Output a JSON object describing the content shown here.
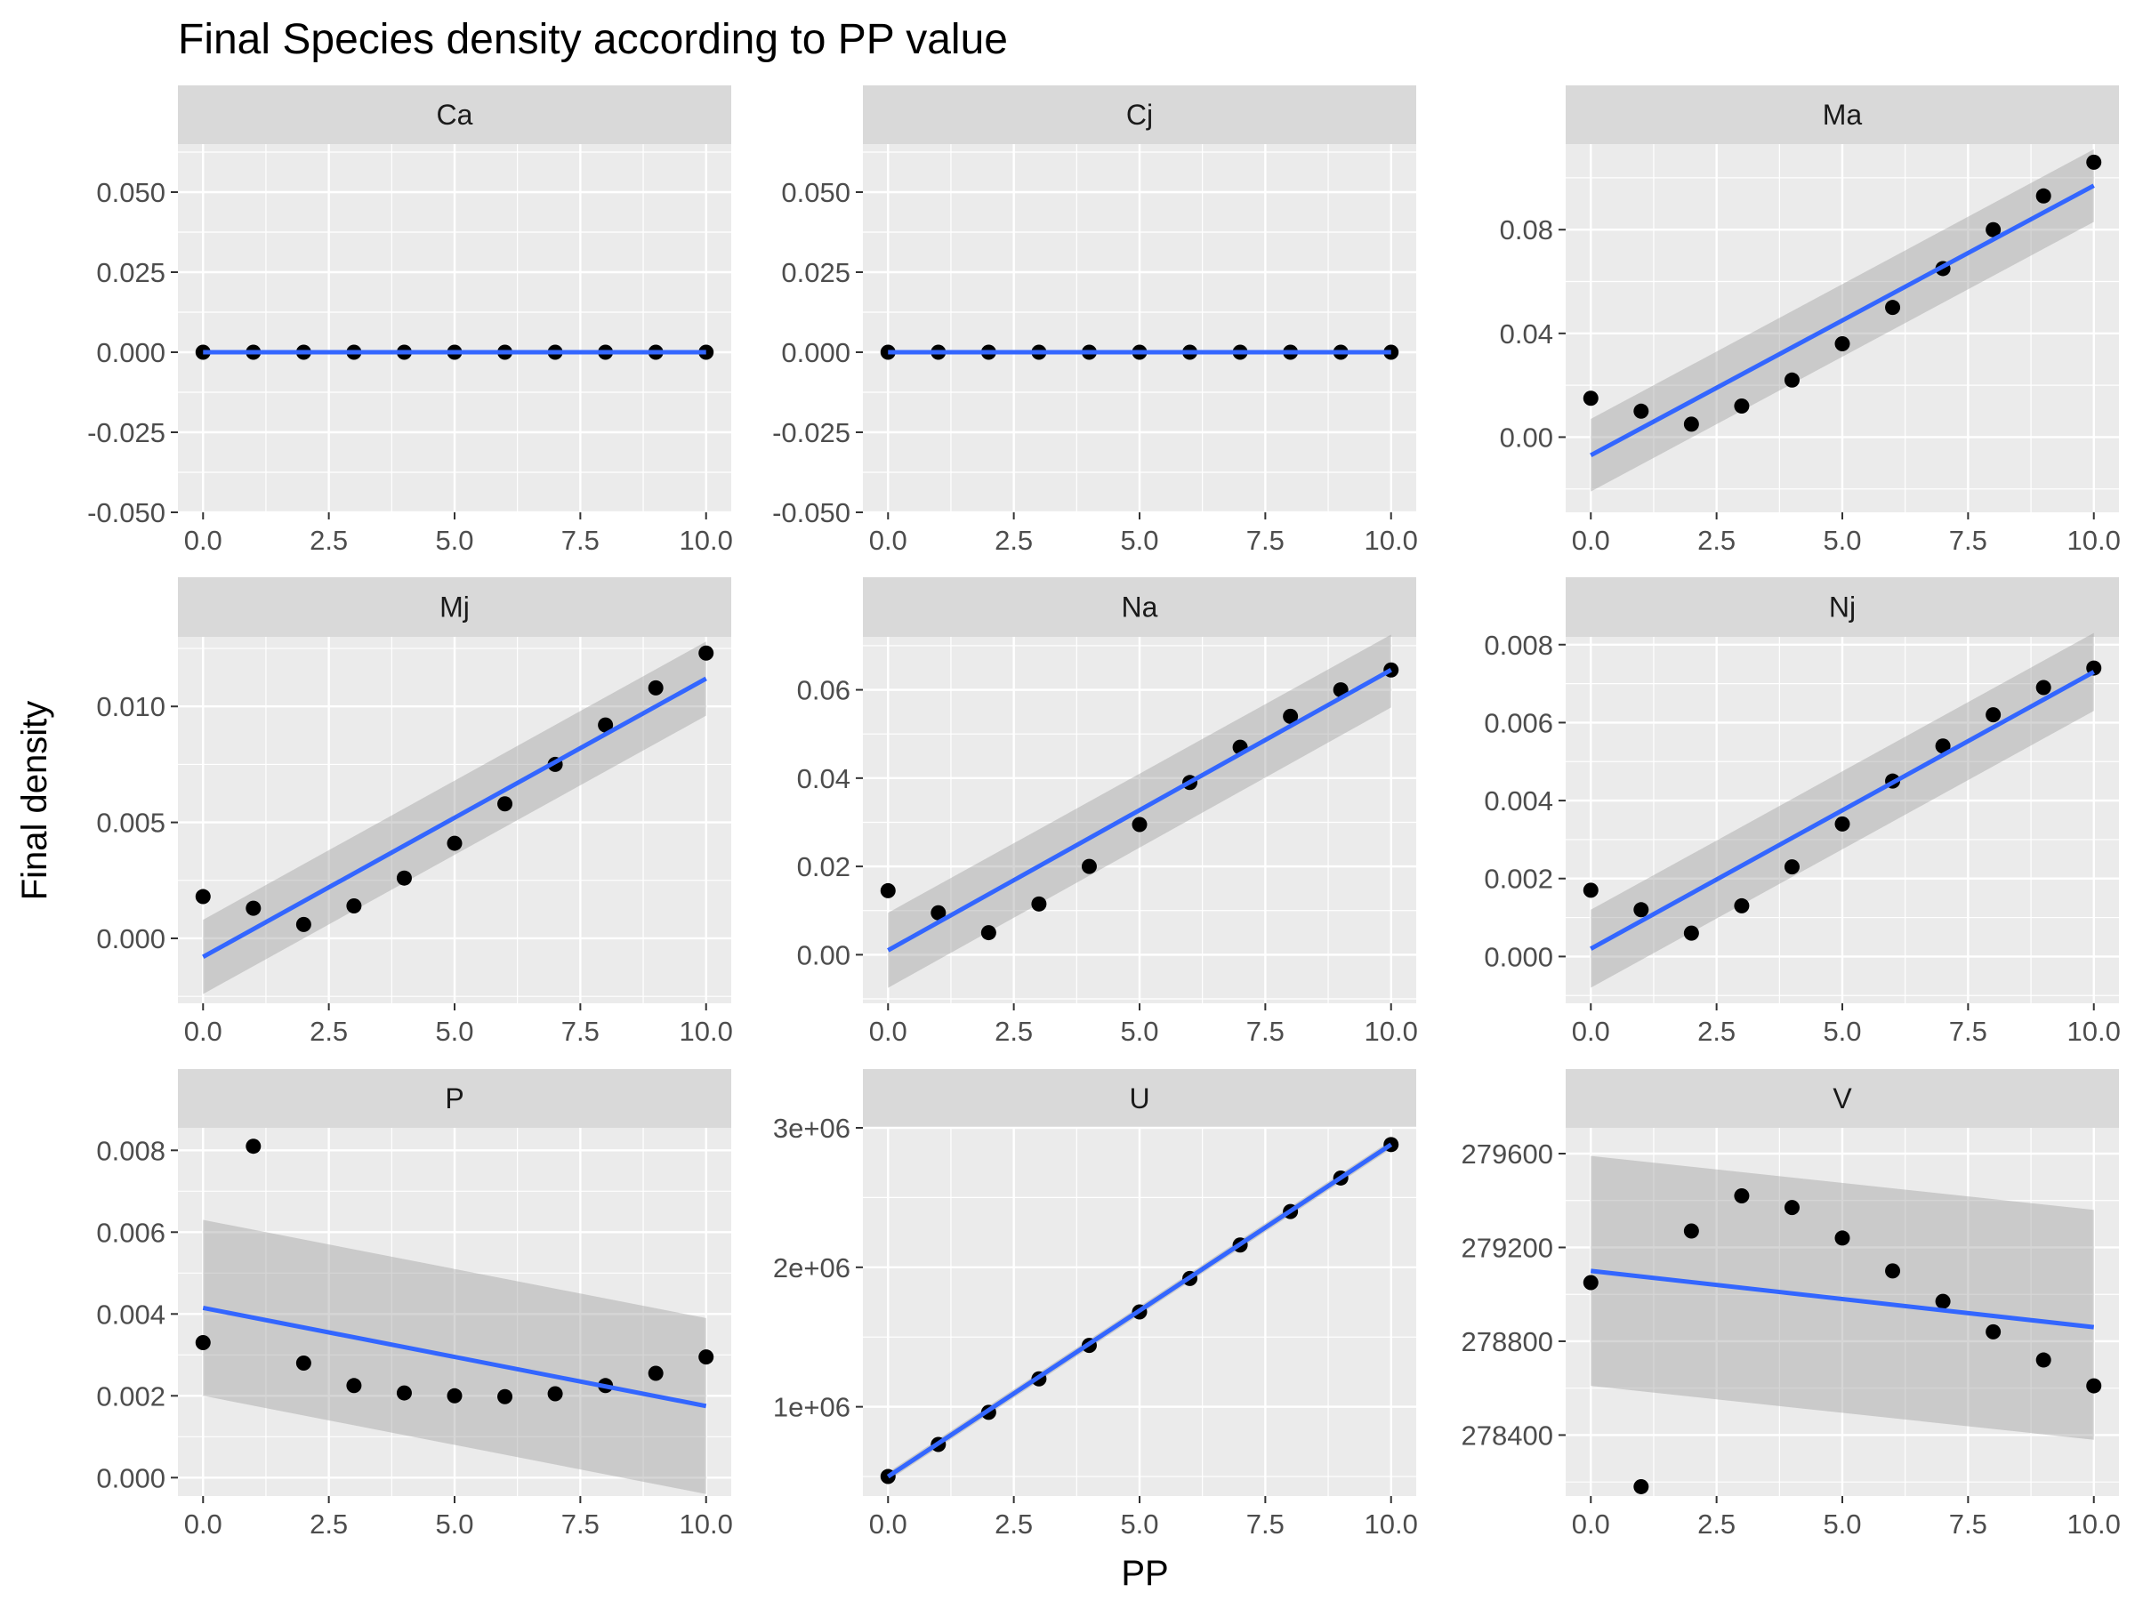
{
  "title": "Final Species density according to PP value",
  "xlabel": "PP",
  "ylabel": "Final density",
  "colors": {
    "panel_bg": "#ebebeb",
    "strip_bg": "#d9d9d9",
    "grid_major": "#ffffff",
    "point": "#000000",
    "fit_line": "#3366ff",
    "ribbon": "#999999"
  },
  "chart_data": {
    "type": "scatter",
    "facet_layout": {
      "rows": 3,
      "cols": 3
    },
    "x_ticks": [
      "0.0",
      "2.5",
      "5.0",
      "7.5",
      "10.0"
    ],
    "x_tick_values": [
      0,
      2.5,
      5,
      7.5,
      10
    ],
    "xlim": [
      -0.5,
      10.5
    ],
    "smooth": "linear fit with confidence band",
    "panels": [
      {
        "name": "Ca",
        "ylim": [
          -0.05,
          0.065
        ],
        "y_ticks": [
          "-0.050",
          "-0.025",
          "0.000",
          "0.025",
          "0.050"
        ],
        "y_tick_values": [
          -0.05,
          -0.025,
          0,
          0.025,
          0.05
        ],
        "x": [
          0,
          1,
          2,
          3,
          4,
          5,
          6,
          7,
          8,
          9,
          10
        ],
        "y": [
          0,
          0,
          0,
          0,
          0,
          0,
          0,
          0,
          0,
          0,
          0
        ],
        "fit": [
          0,
          0
        ],
        "band": [
          [
            0,
            0
          ],
          [
            0,
            0
          ]
        ]
      },
      {
        "name": "Cj",
        "ylim": [
          -0.05,
          0.065
        ],
        "y_ticks": [
          "-0.050",
          "-0.025",
          "0.000",
          "0.025",
          "0.050"
        ],
        "y_tick_values": [
          -0.05,
          -0.025,
          0,
          0.025,
          0.05
        ],
        "x": [
          0,
          1,
          2,
          3,
          4,
          5,
          6,
          7,
          8,
          9,
          10
        ],
        "y": [
          0,
          0,
          0,
          0,
          0,
          0,
          0,
          0,
          0,
          0,
          0
        ],
        "fit": [
          0,
          0
        ],
        "band": [
          [
            0,
            0
          ],
          [
            0,
            0
          ]
        ]
      },
      {
        "name": "Ma",
        "ylim": [
          -0.029,
          0.113
        ],
        "y_ticks": [
          "0.00",
          "0.04",
          "0.08"
        ],
        "y_tick_values": [
          0,
          0.04,
          0.08
        ],
        "x": [
          0,
          1,
          2,
          3,
          4,
          5,
          6,
          7,
          8,
          9,
          10
        ],
        "y": [
          0.015,
          0.01,
          0.005,
          0.012,
          0.022,
          0.036,
          0.05,
          0.065,
          0.08,
          0.093,
          0.106
        ],
        "fit": [
          -0.007,
          0.097
        ],
        "band": [
          [
            -0.021,
            0.007
          ],
          [
            0.083,
            0.111
          ]
        ]
      },
      {
        "name": "Mj",
        "ylim": [
          -0.0028,
          0.013
        ],
        "y_ticks": [
          "0.000",
          "0.005",
          "0.010"
        ],
        "y_tick_values": [
          0,
          0.005,
          0.01
        ],
        "x": [
          0,
          1,
          2,
          3,
          4,
          5,
          6,
          7,
          8,
          9,
          10
        ],
        "y": [
          0.0018,
          0.0013,
          0.0006,
          0.0014,
          0.0026,
          0.0041,
          0.0058,
          0.0075,
          0.0092,
          0.0108,
          0.0123
        ],
        "fit": [
          -0.0008,
          0.0112
        ],
        "band": [
          [
            -0.0024,
            0.0008
          ],
          [
            0.0096,
            0.0128
          ]
        ]
      },
      {
        "name": "Na",
        "ylim": [
          -0.011,
          0.072
        ],
        "y_ticks": [
          "0.00",
          "0.02",
          "0.04",
          "0.06"
        ],
        "y_tick_values": [
          0,
          0.02,
          0.04,
          0.06
        ],
        "x": [
          0,
          1,
          2,
          3,
          4,
          5,
          6,
          7,
          8,
          9,
          10
        ],
        "y": [
          0.0145,
          0.0095,
          0.005,
          0.0115,
          0.02,
          0.0295,
          0.039,
          0.047,
          0.054,
          0.06,
          0.0645
        ],
        "fit": [
          0.001,
          0.0645
        ],
        "band": [
          [
            -0.0075,
            0.0095
          ],
          [
            0.056,
            0.0725
          ]
        ]
      },
      {
        "name": "Nj",
        "ylim": [
          -0.0012,
          0.0082
        ],
        "y_ticks": [
          "0.000",
          "0.002",
          "0.004",
          "0.006",
          "0.008"
        ],
        "y_tick_values": [
          0,
          0.002,
          0.004,
          0.006,
          0.008
        ],
        "x": [
          0,
          1,
          2,
          3,
          4,
          5,
          6,
          7,
          8,
          9,
          10
        ],
        "y": [
          0.0017,
          0.0012,
          0.0006,
          0.0013,
          0.0023,
          0.0034,
          0.0045,
          0.0054,
          0.0062,
          0.0069,
          0.0074
        ],
        "fit": [
          0.0002,
          0.0073
        ],
        "band": [
          [
            -0.0008,
            0.0012
          ],
          [
            0.0063,
            0.0083
          ]
        ]
      },
      {
        "name": "P",
        "ylim": [
          -0.00045,
          0.00855
        ],
        "y_ticks": [
          "0.000",
          "0.002",
          "0.004",
          "0.006",
          "0.008"
        ],
        "y_tick_values": [
          0,
          0.002,
          0.004,
          0.006,
          0.008
        ],
        "x": [
          0,
          1,
          2,
          3,
          4,
          5,
          6,
          7,
          8,
          9,
          10
        ],
        "y": [
          0.0033,
          0.0081,
          0.0028,
          0.00225,
          0.00207,
          0.002,
          0.00198,
          0.00205,
          0.00225,
          0.00255,
          0.00295
        ],
        "fit": [
          0.00415,
          0.00175
        ],
        "band": [
          [
            0.002,
            0.0063
          ],
          [
            -0.0004,
            0.0039
          ]
        ]
      },
      {
        "name": "U",
        "ylim": [
          360000,
          3000000
        ],
        "y_ticks": [
          "1e+06",
          "2e+06",
          "3e+06"
        ],
        "y_tick_values": [
          1000000,
          2000000,
          3000000
        ],
        "x": [
          0,
          1,
          2,
          3,
          4,
          5,
          6,
          7,
          8,
          9,
          10
        ],
        "y": [
          500000,
          730000,
          960000,
          1200000,
          1440000,
          1680000,
          1920000,
          2160000,
          2400000,
          2640000,
          2880000
        ],
        "fit": [
          500000,
          2880000
        ],
        "band": [
          [
            470000,
            530000
          ],
          [
            2850000,
            2910000
          ]
        ]
      },
      {
        "name": "V",
        "ylim": [
          278140,
          279710
        ],
        "y_ticks": [
          "278400",
          "278800",
          "279200",
          "279600"
        ],
        "y_tick_values": [
          278400,
          278800,
          279200,
          279600
        ],
        "x": [
          0,
          1,
          2,
          3,
          4,
          5,
          6,
          7,
          8,
          9,
          10
        ],
        "y": [
          279050,
          278180,
          279270,
          279420,
          279370,
          279240,
          279100,
          278970,
          278840,
          278720,
          278610
        ],
        "fit": [
          279100,
          278860
        ],
        "band": [
          [
            278610,
            279590
          ],
          [
            278380,
            279360
          ]
        ]
      }
    ]
  }
}
